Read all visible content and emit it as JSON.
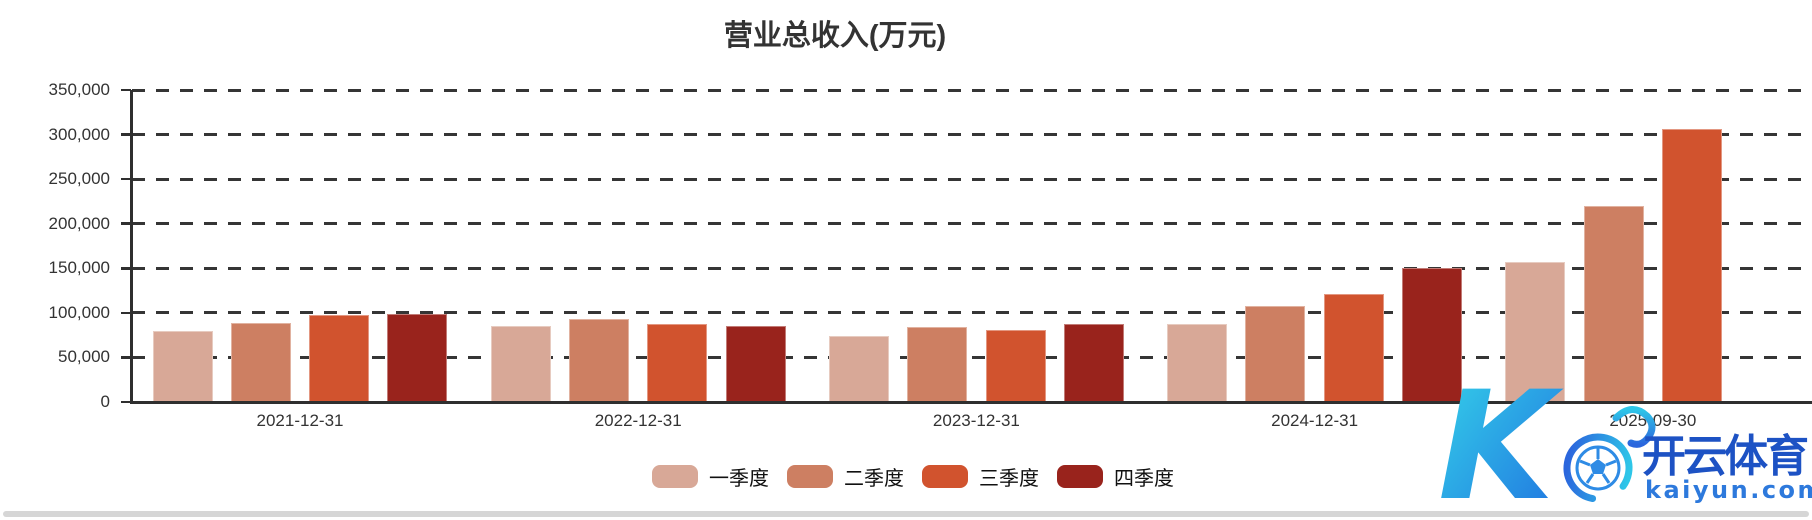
{
  "title": "营业总收入(万元)",
  "chart_data": {
    "type": "bar",
    "title": "营业总收入(万元)",
    "categories": [
      "2021-12-31",
      "2022-12-31",
      "2023-12-31",
      "2024-12-31",
      "2025-09-30"
    ],
    "series": [
      {
        "name": "一季度",
        "color": "#d8a897",
        "values": [
          80000,
          85500,
          74500,
          88000,
          157500
        ]
      },
      {
        "name": "二季度",
        "color": "#cd7f62",
        "values": [
          88500,
          93500,
          84000,
          108000,
          220000
        ]
      },
      {
        "name": "三季度",
        "color": "#d1532e",
        "values": [
          97500,
          87000,
          81000,
          121000,
          306500
        ]
      },
      {
        "name": "四季度",
        "color": "#99231c",
        "values": [
          99000,
          85000,
          87500,
          150500,
          null
        ]
      }
    ],
    "ylim": [
      0,
      350000
    ],
    "ytick_step": 50000,
    "y_tick_labels": [
      "0",
      "50,000",
      "100,000",
      "150,000",
      "200,000",
      "250,000",
      "300,000",
      "350,000"
    ],
    "grid": "horizontal-dashed",
    "legend_position": "bottom-center",
    "axis_color": "#2f2f2f",
    "grid_color": "#353535"
  },
  "watermark": {
    "brand": "开云体育",
    "domain": "kaiyun.com",
    "logo": "kaiyun-k-soccer-logo",
    "brand_color": "#1d52c4",
    "domain_color": "#2d79dc",
    "logo_gradient": [
      "#35d3e9",
      "#1f6fe0"
    ]
  }
}
